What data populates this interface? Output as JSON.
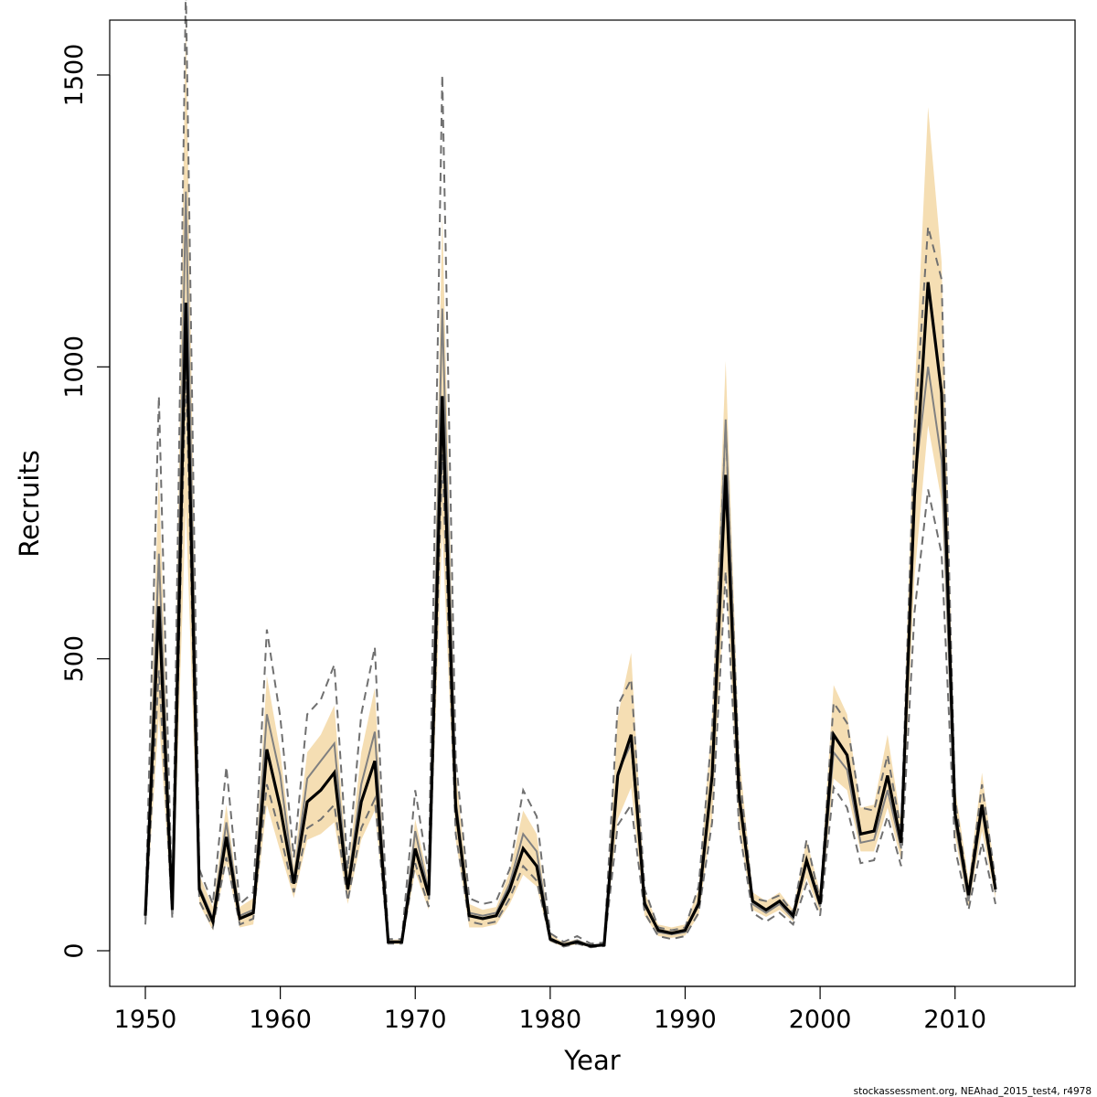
{
  "chart_data": {
    "type": "line",
    "xlabel": "Year",
    "ylabel": "Recruits",
    "xlim": [
      1950,
      2013
    ],
    "ylim": [
      0,
      1600
    ],
    "xticks": [
      1950,
      1960,
      1970,
      1980,
      1990,
      2000,
      2010
    ],
    "yticks": [
      0,
      500,
      1000,
      1500
    ],
    "grid": false,
    "footnote": "stockassessment.org, NEAhad_2015_test4, r4978",
    "colors": {
      "band": "#f5deb3",
      "estimate": "#000000",
      "comparison": "#808080",
      "comparison_ci": "#707070"
    },
    "x": [
      1950,
      1951,
      1952,
      1953,
      1954,
      1955,
      1956,
      1957,
      1958,
      1959,
      1960,
      1961,
      1962,
      1963,
      1964,
      1965,
      1966,
      1967,
      1968,
      1969,
      1970,
      1971,
      1972,
      1973,
      1974,
      1975,
      1976,
      1977,
      1978,
      1979,
      1980,
      1981,
      1982,
      1983,
      1984,
      1985,
      1986,
      1987,
      1988,
      1989,
      1990,
      1991,
      1992,
      1993,
      1994,
      1995,
      1996,
      1997,
      1998,
      1999,
      2000,
      2001,
      2002,
      2003,
      2004,
      2005,
      2006,
      2007,
      2008,
      2009,
      2010,
      2011,
      2012,
      2013
    ],
    "series": [
      {
        "name": "estimate",
        "values": [
          60,
          590,
          70,
          1110,
          105,
          50,
          195,
          55,
          65,
          345,
          245,
          115,
          255,
          275,
          305,
          105,
          255,
          325,
          15,
          15,
          175,
          95,
          950,
          245,
          60,
          55,
          60,
          105,
          175,
          145,
          20,
          10,
          15,
          8,
          10,
          300,
          370,
          80,
          35,
          30,
          35,
          80,
          300,
          815,
          265,
          85,
          70,
          85,
          60,
          155,
          80,
          370,
          335,
          200,
          205,
          300,
          185,
          780,
          1145,
          955,
          235,
          95,
          250,
          105
        ]
      },
      {
        "name": "band_upper",
        "values": [
          70,
          820,
          85,
          1600,
          130,
          75,
          250,
          75,
          90,
          470,
          340,
          145,
          340,
          370,
          420,
          135,
          340,
          450,
          18,
          20,
          225,
          120,
          1260,
          310,
          80,
          70,
          75,
          135,
          240,
          200,
          28,
          14,
          20,
          10,
          12,
          400,
          510,
          100,
          45,
          40,
          45,
          105,
          400,
          1010,
          340,
          100,
          85,
          100,
          70,
          190,
          100,
          455,
          405,
          245,
          250,
          370,
          220,
          950,
          1445,
          1180,
          280,
          120,
          305,
          125
        ]
      },
      {
        "name": "band_lower",
        "values": [
          50,
          400,
          55,
          760,
          80,
          35,
          150,
          40,
          45,
          250,
          170,
          90,
          190,
          200,
          220,
          80,
          190,
          240,
          12,
          11,
          135,
          70,
          720,
          190,
          40,
          40,
          45,
          80,
          130,
          110,
          15,
          7,
          11,
          6,
          8,
          225,
          280,
          60,
          25,
          22,
          26,
          60,
          225,
          655,
          205,
          70,
          58,
          70,
          50,
          125,
          65,
          295,
          275,
          170,
          170,
          245,
          155,
          640,
          900,
          770,
          195,
          75,
          205,
          90
        ]
      },
      {
        "name": "comparison",
        "values": [
          55,
          680,
          65,
          1300,
          110,
          55,
          220,
          60,
          70,
          405,
          300,
          120,
          295,
          325,
          355,
          110,
          285,
          375,
          15,
          15,
          205,
          100,
          1100,
          260,
          65,
          60,
          65,
          115,
          200,
          170,
          22,
          10,
          18,
          8,
          10,
          305,
          355,
          85,
          32,
          28,
          32,
          85,
          300,
          910,
          270,
          80,
          65,
          80,
          55,
          150,
          75,
          340,
          310,
          185,
          190,
          275,
          175,
          800,
          1000,
          840,
          220,
          85,
          240,
          100
        ]
      },
      {
        "name": "comparison_upper",
        "values": [
          60,
          950,
          70,
          1650,
          140,
          80,
          315,
          80,
          100,
          550,
          400,
          160,
          405,
          430,
          490,
          140,
          405,
          520,
          20,
          20,
          275,
          130,
          1500,
          330,
          90,
          80,
          85,
          140,
          275,
          230,
          30,
          15,
          25,
          12,
          14,
          420,
          465,
          105,
          40,
          35,
          40,
          110,
          380,
          900,
          310,
          90,
          85,
          95,
          65,
          190,
          85,
          425,
          390,
          245,
          240,
          335,
          205,
          890,
          1240,
          1150,
          260,
          100,
          285,
          120
        ]
      },
      {
        "name": "comparison_lower",
        "values": [
          45,
          480,
          55,
          1000,
          85,
          40,
          160,
          45,
          55,
          285,
          200,
          100,
          210,
          225,
          250,
          85,
          210,
          260,
          12,
          12,
          150,
          75,
          850,
          200,
          50,
          45,
          50,
          90,
          145,
          120,
          18,
          7,
          12,
          6,
          8,
          215,
          250,
          65,
          25,
          20,
          25,
          65,
          220,
          650,
          210,
          65,
          50,
          65,
          45,
          115,
          60,
          280,
          245,
          150,
          155,
          230,
          145,
          580,
          790,
          680,
          175,
          70,
          185,
          80
        ]
      }
    ]
  }
}
